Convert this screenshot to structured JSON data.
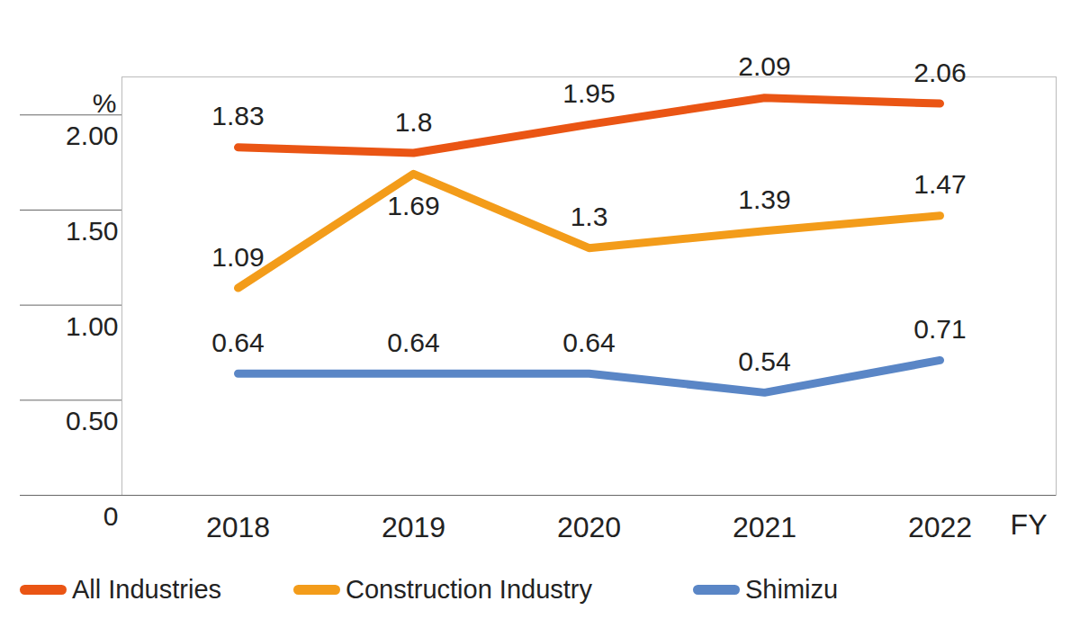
{
  "chart_data": {
    "type": "line",
    "x_label": "FY",
    "y_label": "%",
    "categories": [
      "2018",
      "2019",
      "2020",
      "2021",
      "2022"
    ],
    "series": [
      {
        "name": "All Industries",
        "color": "#ea5514",
        "values": [
          1.83,
          1.8,
          1.95,
          2.09,
          2.06
        ]
      },
      {
        "name": "Construction Industry",
        "color": "#f39c1a",
        "values": [
          1.09,
          1.69,
          1.3,
          1.39,
          1.47
        ]
      },
      {
        "name": "Shimizu",
        "color": "#5a86c6",
        "values": [
          0.64,
          0.64,
          0.64,
          0.54,
          0.71
        ]
      }
    ],
    "ylim": [
      0,
      2.2
    ],
    "yticks": [
      0,
      {
        "value": 0.5,
        "label": "0.50"
      },
      {
        "value": 1,
        "label": "1.00"
      },
      {
        "value": 1.5,
        "label": "1.50"
      },
      {
        "value": 2,
        "label": "2.00"
      }
    ],
    "data_labels": true,
    "legend": "bottom",
    "grid": false
  }
}
